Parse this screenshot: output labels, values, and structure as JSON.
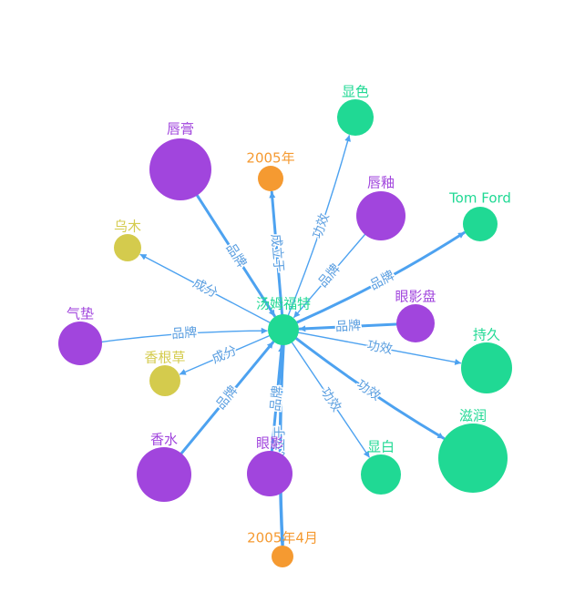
{
  "colors": {
    "brand": "#a145dd",
    "ingredient": "#d4cb4d",
    "effect": "#20d994",
    "date": "#f59a31",
    "edge": "#4da2f0",
    "edge_label": "#5a9ee0"
  },
  "nodes": [
    {
      "id": "center",
      "label": "汤姆福特",
      "category": "effect"
    },
    {
      "id": "chungao",
      "label": "唇膏",
      "category": "brand"
    },
    {
      "id": "y2005",
      "label": "2005年",
      "category": "date"
    },
    {
      "id": "xianse",
      "label": "显色",
      "category": "effect"
    },
    {
      "id": "chunyou",
      "label": "唇釉",
      "category": "brand"
    },
    {
      "id": "tomford",
      "label": "Tom Ford",
      "category": "effect"
    },
    {
      "id": "wumu",
      "label": "乌木",
      "category": "ingredient"
    },
    {
      "id": "yanyingpan",
      "label": "眼影盘",
      "category": "brand"
    },
    {
      "id": "qidian",
      "label": "气垫",
      "category": "brand"
    },
    {
      "id": "chijiu",
      "label": "持久",
      "category": "effect"
    },
    {
      "id": "xianggencao",
      "label": "香根草",
      "category": "ingredient"
    },
    {
      "id": "zirun",
      "label": "滋润",
      "category": "effect"
    },
    {
      "id": "xiangshui",
      "label": "香水",
      "category": "brand"
    },
    {
      "id": "yanying",
      "label": "眼影",
      "category": "brand"
    },
    {
      "id": "xianbai",
      "label": "显白",
      "category": "effect"
    },
    {
      "id": "y2005_4",
      "label": "2005年4月",
      "category": "date"
    }
  ],
  "edges": [
    {
      "source": "chungao",
      "target": "center",
      "label": "品牌"
    },
    {
      "source": "center",
      "target": "y2005",
      "label": "成立于"
    },
    {
      "source": "center",
      "target": "xianse",
      "label": "功效"
    },
    {
      "source": "chunyou",
      "target": "center",
      "label": "品牌"
    },
    {
      "source": "center",
      "target": "tomford",
      "label": "品牌"
    },
    {
      "source": "center",
      "target": "wumu",
      "label": "成分"
    },
    {
      "source": "yanyingpan",
      "target": "center",
      "label": "品牌"
    },
    {
      "source": "qidian",
      "target": "center",
      "label": "品牌"
    },
    {
      "source": "center",
      "target": "chijiu",
      "label": "功效"
    },
    {
      "source": "center",
      "target": "xianggencao",
      "label": "成分"
    },
    {
      "source": "center",
      "target": "zirun",
      "label": "功效"
    },
    {
      "source": "xiangshui",
      "target": "center",
      "label": "品牌"
    },
    {
      "source": "yanying",
      "target": "center",
      "label": "品牌"
    },
    {
      "source": "center",
      "target": "xianbai",
      "label": "功效"
    },
    {
      "source": "center",
      "target": "y2005_4",
      "label": "成立于"
    }
  ]
}
